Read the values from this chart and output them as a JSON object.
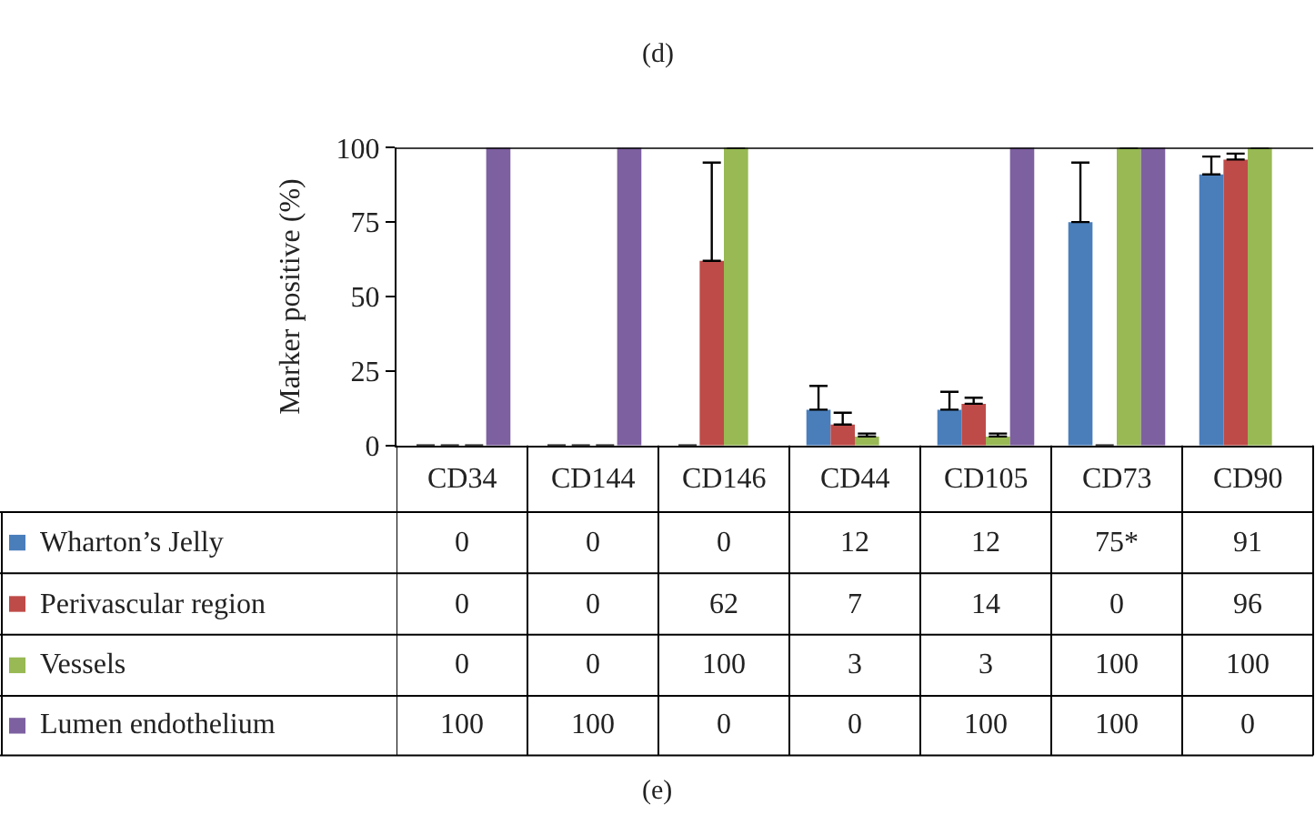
{
  "chart_data": {
    "type": "bar",
    "title": "(d)",
    "ylabel": "Marker positive (%)",
    "annotations": [
      "(e)"
    ],
    "categories": [
      "CD34",
      "CD144",
      "CD146",
      "CD44",
      "CD105",
      "CD73",
      "CD90"
    ],
    "ylim": [
      0,
      100
    ],
    "yticks": [
      0,
      25,
      50,
      75,
      100
    ],
    "legend": "bottom left",
    "series": [
      {
        "name": "Wharton’s Jelly",
        "color": "#4a7ebb",
        "values": [
          0,
          0,
          0,
          12,
          12,
          75,
          91
        ],
        "errors": [
          null,
          null,
          null,
          [
            12,
            20
          ],
          [
            12,
            18
          ],
          [
            75,
            95
          ],
          [
            91,
            97
          ]
        ],
        "value_labels": [
          "0",
          "0",
          "0",
          "12",
          "12",
          "75*",
          "91"
        ]
      },
      {
        "name": "Perivascular region",
        "color": "#be4b48",
        "values": [
          0,
          0,
          62,
          7,
          14,
          0,
          96
        ],
        "errors": [
          null,
          null,
          [
            62,
            95
          ],
          [
            7,
            11
          ],
          [
            14,
            16
          ],
          null,
          [
            96,
            98
          ]
        ],
        "value_labels": [
          "0",
          "0",
          "62",
          "7",
          "14",
          "0",
          "96"
        ]
      },
      {
        "name": "Vessels",
        "color": "#98b954",
        "values": [
          0,
          0,
          100,
          3,
          3,
          100,
          100
        ],
        "errors": [
          null,
          null,
          null,
          [
            3,
            4
          ],
          [
            3,
            4
          ],
          null,
          null
        ],
        "value_labels": [
          "0",
          "0",
          "100",
          "3",
          "3",
          "100",
          "100"
        ]
      },
      {
        "name": "Lumen endothelium",
        "color": "#7d60a0",
        "values": [
          100,
          100,
          0,
          0,
          100,
          100,
          0
        ],
        "value_labels": [
          "100",
          "100",
          "0",
          "0",
          "100",
          "100",
          "0"
        ]
      }
    ]
  }
}
